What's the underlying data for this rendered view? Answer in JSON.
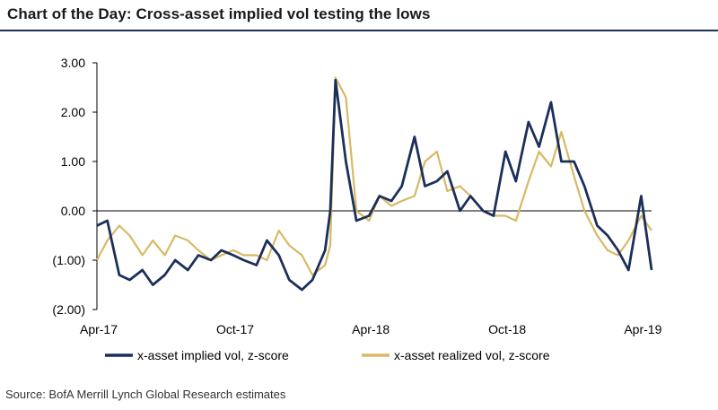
{
  "header": {
    "title": "Chart of the Day: Cross-asset implied vol testing the lows"
  },
  "footer": {
    "source": "Source: BofA Merrill Lynch Global Research estimates"
  },
  "chart_data": {
    "type": "line",
    "title": "Chart of the Day: Cross-asset implied vol testing the lows",
    "xlabel": "",
    "ylabel": "",
    "x_tick_labels": [
      "Apr-17",
      "Oct-17",
      "Apr-18",
      "Oct-18",
      "Apr-19"
    ],
    "y_tick_labels": [
      "3.00",
      "2.00",
      "1.00",
      "0.00",
      "(1.00)",
      "(2.00)"
    ],
    "ylim": [
      -2,
      3
    ],
    "grid": false,
    "legend_position": "bottom",
    "x": [
      "2017-04-01",
      "2017-04-15",
      "2017-05-01",
      "2017-05-15",
      "2017-06-01",
      "2017-06-15",
      "2017-07-01",
      "2017-07-15",
      "2017-08-01",
      "2017-08-15",
      "2017-09-01",
      "2017-09-15",
      "2017-10-01",
      "2017-10-15",
      "2017-11-01",
      "2017-11-15",
      "2017-12-01",
      "2017-12-15",
      "2018-01-01",
      "2018-01-15",
      "2018-02-01",
      "2018-02-08",
      "2018-02-15",
      "2018-03-01",
      "2018-03-15",
      "2018-04-01",
      "2018-04-15",
      "2018-05-01",
      "2018-05-15",
      "2018-06-01",
      "2018-06-15",
      "2018-07-01",
      "2018-07-15",
      "2018-08-01",
      "2018-08-15",
      "2018-09-01",
      "2018-09-15",
      "2018-10-01",
      "2018-10-15",
      "2018-11-01",
      "2018-11-15",
      "2018-12-01",
      "2018-12-15",
      "2019-01-01",
      "2019-01-15",
      "2019-02-01",
      "2019-02-15",
      "2019-03-01",
      "2019-03-15",
      "2019-04-01",
      "2019-04-15"
    ],
    "series": [
      {
        "name": "x-asset implied vol, z-score",
        "color": "#1b2f5a",
        "values": [
          -0.3,
          -0.2,
          -1.3,
          -1.4,
          -1.2,
          -1.5,
          -1.3,
          -1.0,
          -1.2,
          -0.9,
          -1.0,
          -0.8,
          -0.9,
          -1.0,
          -1.1,
          -0.6,
          -0.9,
          -1.4,
          -1.6,
          -1.4,
          -0.8,
          0.0,
          2.65,
          1.0,
          -0.2,
          -0.1,
          0.3,
          0.2,
          0.5,
          1.5,
          0.5,
          0.6,
          0.8,
          0.0,
          0.3,
          0.0,
          -0.1,
          1.2,
          0.6,
          1.8,
          1.3,
          2.2,
          1.0,
          1.0,
          0.5,
          -0.3,
          -0.5,
          -0.8,
          -1.2,
          0.3,
          -1.2
        ]
      },
      {
        "name": "x-asset realized vol, z-score",
        "color": "#d8b965",
        "values": [
          -1.0,
          -0.6,
          -0.3,
          -0.5,
          -0.9,
          -0.6,
          -0.9,
          -0.5,
          -0.6,
          -0.8,
          -1.0,
          -0.9,
          -0.8,
          -0.9,
          -0.9,
          -1.0,
          -0.4,
          -0.7,
          -0.9,
          -1.3,
          -1.1,
          -0.7,
          2.7,
          2.3,
          0.0,
          -0.2,
          0.3,
          0.1,
          0.2,
          0.3,
          1.0,
          1.2,
          0.4,
          0.5,
          0.3,
          0.0,
          -0.1,
          -0.1,
          -0.2,
          0.6,
          1.2,
          0.9,
          1.6,
          0.7,
          0.0,
          -0.5,
          -0.8,
          -0.9,
          -0.6,
          -0.1,
          -0.4
        ]
      }
    ]
  }
}
